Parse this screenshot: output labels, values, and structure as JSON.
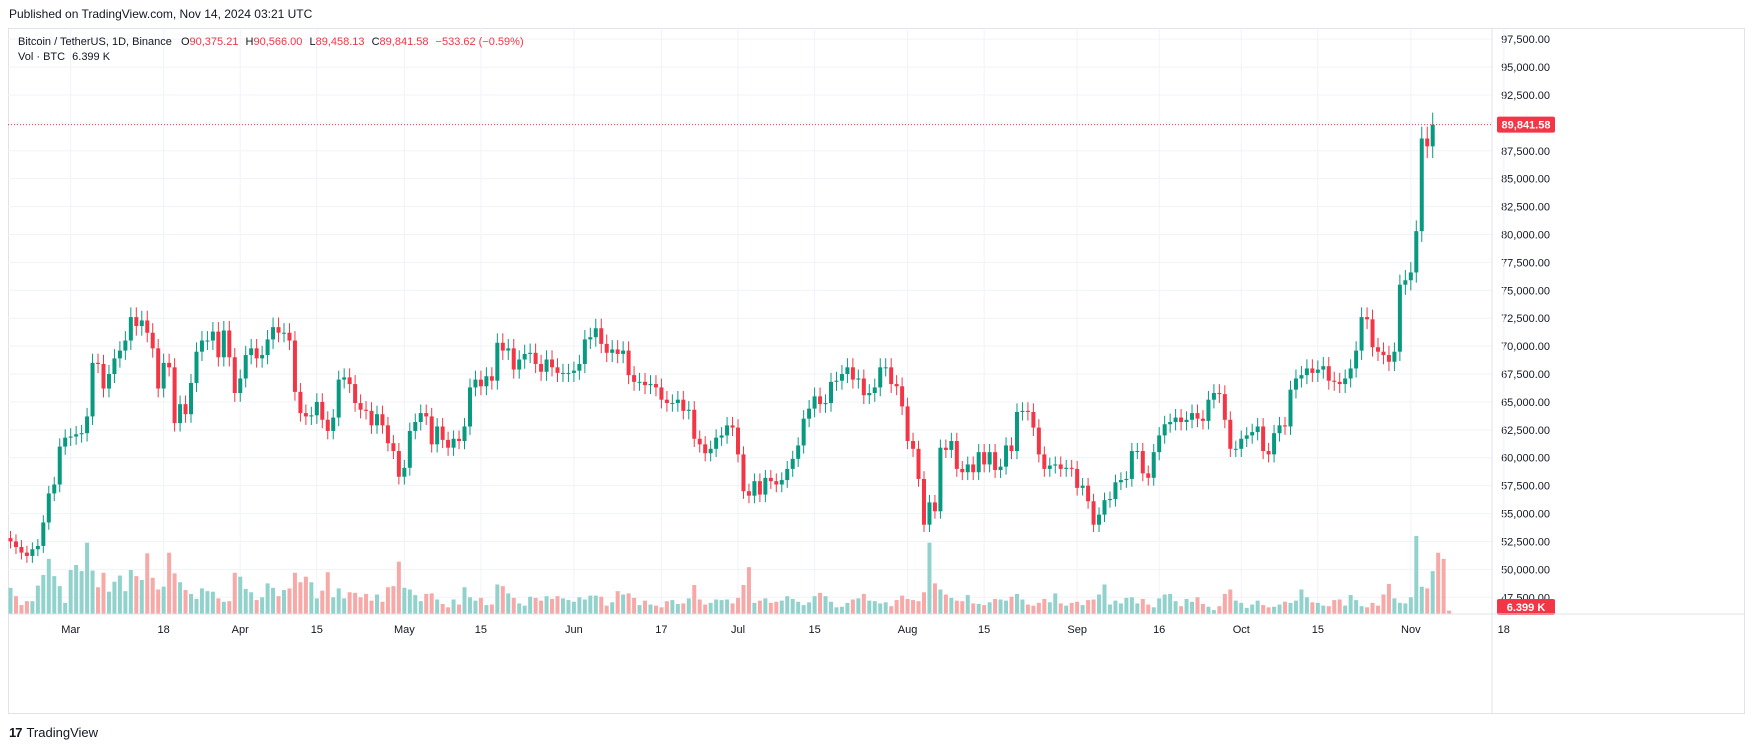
{
  "published": "Published on TradingView.com, Nov 14, 2024 03:21 UTC",
  "legend": {
    "symbol": "Bitcoin / TetherUS, 1D, Binance",
    "o_label": "O",
    "o_value": "90,375.21",
    "h_label": "H",
    "h_value": "90,566.00",
    "l_label": "L",
    "l_value": "89,458.13",
    "c_label": "C",
    "c_value": "89,841.58",
    "change": "−533.62 (−0.59%)",
    "vol_label": "Vol · BTC",
    "vol_value": "6.399 K"
  },
  "price_badge": "89,841.58",
  "vol_badge": "6.399 K",
  "footer": {
    "logo_glyph": "17",
    "brand": "TradingView"
  },
  "colors": {
    "up": "#089981",
    "down": "#f23645",
    "up_vol": "#92d2cc",
    "down_vol": "#f7a9a7",
    "grid": "#f0f3fa",
    "axis_text": "#131722"
  },
  "chart_data": {
    "type": "candlestick",
    "title": "Bitcoin / TetherUS, 1D, Binance",
    "ylim": [
      46000,
      98500
    ],
    "y_ticks": [
      "97,500.00",
      "95,000.00",
      "92,500.00",
      "90,000.00",
      "87,500.00",
      "85,000.00",
      "82,500.00",
      "80,000.00",
      "77,500.00",
      "75,000.00",
      "72,500.00",
      "70,000.00",
      "67,500.00",
      "65,000.00",
      "62,500.00",
      "60,000.00",
      "57,500.00",
      "55,000.00",
      "52,500.00",
      "50,000.00",
      "47,500.00"
    ],
    "y_tick_values": [
      97500,
      95000,
      92500,
      90000,
      87500,
      85000,
      82500,
      80000,
      77500,
      75000,
      72500,
      70000,
      67500,
      65000,
      62500,
      60000,
      57500,
      55000,
      52500,
      50000,
      47500
    ],
    "x_ticks": [
      {
        "label": "Mar",
        "day": 11
      },
      {
        "label": "18",
        "day": 28
      },
      {
        "label": "Apr",
        "day": 42
      },
      {
        "label": "15",
        "day": 56
      },
      {
        "label": "May",
        "day": 72
      },
      {
        "label": "15",
        "day": 86
      },
      {
        "label": "Jun",
        "day": 103
      },
      {
        "label": "17",
        "day": 119
      },
      {
        "label": "Jul",
        "day": 133
      },
      {
        "label": "15",
        "day": 147
      },
      {
        "label": "Aug",
        "day": 164
      },
      {
        "label": "15",
        "day": 178
      },
      {
        "label": "Sep",
        "day": 195
      },
      {
        "label": "16",
        "day": 210
      },
      {
        "label": "Oct",
        "day": 225
      },
      {
        "label": "15",
        "day": 239
      },
      {
        "label": "Nov",
        "day": 256
      },
      {
        "label": "18",
        "day": 273
      }
    ],
    "last_price": 89841.58,
    "closes": [
      52500,
      52000,
      51500,
      51200,
      51800,
      52100,
      54200,
      56800,
      57600,
      61000,
      61800,
      61900,
      62100,
      62200,
      63700,
      68500,
      68400,
      66200,
      67500,
      68900,
      69600,
      70500,
      72600,
      71800,
      72300,
      71200,
      69800,
      66200,
      68500,
      68100,
      63100,
      64800,
      63900,
      66700,
      69500,
      70500,
      70500,
      71300,
      69000,
      71400,
      69000,
      65800,
      67100,
      69200,
      69800,
      68900,
      69200,
      70600,
      71700,
      71200,
      71200,
      70500,
      65900,
      64000,
      63700,
      63800,
      65000,
      63400,
      62400,
      63600,
      67000,
      67200,
      66600,
      64900,
      64300,
      64200,
      62900,
      63900,
      62900,
      61300,
      60600,
      58300,
      59100,
      62400,
      63200,
      64000,
      63700,
      61200,
      62800,
      61600,
      60900,
      61700,
      61500,
      62800,
      66300,
      67000,
      66400,
      67300,
      66900,
      70300,
      69600,
      69800,
      67900,
      68800,
      69300,
      69400,
      68400,
      67700,
      68800,
      68100,
      67600,
      67600,
      67600,
      67800,
      68400,
      70600,
      70800,
      71600,
      70200,
      69400,
      69700,
      69300,
      69600,
      67400,
      66800,
      66800,
      66500,
      66600,
      66300,
      65200,
      64900,
      64900,
      65200,
      64200,
      64300,
      61700,
      61200,
      60400,
      60800,
      61800,
      62000,
      62900,
      62700,
      60300,
      57000,
      56600,
      57900,
      56700,
      58200,
      57900,
      57600,
      58000,
      59000,
      59900,
      61100,
      63500,
      64400,
      65500,
      64800,
      64900,
      66800,
      66900,
      67500,
      68100,
      67000,
      67100,
      65600,
      65800,
      66300,
      68100,
      68100,
      66600,
      66400,
      64600,
      61500,
      60800,
      58100,
      54000,
      56000,
      55200,
      60900,
      60700,
      61500,
      59000,
      58700,
      59400,
      58700,
      60500,
      59400,
      60500,
      58900,
      59200,
      61100,
      60600,
      64100,
      64200,
      64100,
      62700,
      60300,
      59000,
      59300,
      59400,
      59000,
      59100,
      59000,
      57300,
      57500,
      56100,
      54000,
      54900,
      56200,
      56300,
      57800,
      58000,
      58100,
      60600,
      60600,
      58600,
      58200,
      60500,
      62000,
      63000,
      63200,
      63600,
      63200,
      63400,
      64000,
      63500,
      63300,
      65200,
      65800,
      65700,
      63400,
      60800,
      60800,
      61700,
      62000,
      62300,
      62800,
      60600,
      60300,
      62200,
      62900,
      62800,
      66100,
      67100,
      67400,
      68000,
      67600,
      67900,
      68200,
      66900,
      66800,
      66600,
      67100,
      68000,
      69600,
      72600,
      72400,
      69900,
      69500,
      69200,
      68600,
      69500,
      75500,
      75900,
      76600,
      80300,
      88600,
      87900,
      89841.58
    ],
    "volumes": [
      4.7,
      3.2,
      1.6,
      2.3,
      2.3,
      5.1,
      7.0,
      9.9,
      6.8,
      5.0,
      2.0,
      7.9,
      8.8,
      7.7,
      12.8,
      7.8,
      4.8,
      7.4,
      4.0,
      5.8,
      6.9,
      4.1,
      7.9,
      6.8,
      6.1,
      10.9,
      6.5,
      4.4,
      4.9,
      11.0,
      7.3,
      5.7,
      4.3,
      3.6,
      2.7,
      4.6,
      4.1,
      4.0,
      2.8,
      2.2,
      2.3,
      7.4,
      6.7,
      4.5,
      3.9,
      2.5,
      3.0,
      5.5,
      4.7,
      3.2,
      4.3,
      4.6,
      7.4,
      5.7,
      6.7,
      5.7,
      2.8,
      4.2,
      7.5,
      3.0,
      4.6,
      2.8,
      3.9,
      3.8,
      3.0,
      3.6,
      2.4,
      3.5,
      2.2,
      4.8,
      5.0,
      9.4,
      4.7,
      4.4,
      3.4,
      2.3,
      3.6,
      3.7,
      2.6,
      1.8,
      1.2,
      2.6,
      1.7,
      4.8,
      3.0,
      2.4,
      2.9,
      1.6,
      1.7,
      5.3,
      5.0,
      3.7,
      2.9,
      1.9,
      1.5,
      3.1,
      2.9,
      2.4,
      3.2,
      2.7,
      3.2,
      2.8,
      2.5,
      2.2,
      3.0,
      2.6,
      3.3,
      3.3,
      3.1,
      1.5,
      2.1,
      4.1,
      3.5,
      3.7,
      2.9,
      1.6,
      2.4,
      1.7,
      1.5,
      1.2,
      2.3,
      2.5,
      1.8,
      1.9,
      2.8,
      5.2,
      2.6,
      1.7,
      2.0,
      2.6,
      2.5,
      2.6,
      1.9,
      2.9,
      5.2,
      8.4,
      2.0,
      2.4,
      2.8,
      2.0,
      2.2,
      2.4,
      3.2,
      2.7,
      2.2,
      1.6,
      2.1,
      3.2,
      3.8,
      3.2,
      2.2,
      1.2,
      1.3,
      2.0,
      2.6,
      2.8,
      3.6,
      2.4,
      2.3,
      1.9,
      2.1,
      1.4,
      2.5,
      3.3,
      2.7,
      2.5,
      2.3,
      3.9,
      12.8,
      5.5,
      4.4,
      3.5,
      2.9,
      2.4,
      2.3,
      3.4,
      1.9,
      1.8,
      1.6,
      2.1,
      2.7,
      2.6,
      2.4,
      3.1,
      3.6,
      2.6,
      1.7,
      1.5,
      2.0,
      2.7,
      2.1,
      3.7,
      1.9,
      1.5,
      2.0,
      2.2,
      1.6,
      2.5,
      2.6,
      3.5,
      5.3,
      1.7,
      2.4,
      1.9,
      2.9,
      3.0,
      1.9,
      2.7,
      1.7,
      1.2,
      2.8,
      3.5,
      3.6,
      2.3,
      1.4,
      2.7,
      2.2,
      3.0,
      1.8,
      1.3,
      0.7,
      1.4,
      3.6,
      4.4,
      2.4,
      2.0,
      1.1,
      1.7,
      2.4,
      1.6,
      1.2,
      1.3,
      1.7,
      2.2,
      2.0,
      2.4,
      4.4,
      3.0,
      2.1,
      2.0,
      1.5,
      1.4,
      2.5,
      2.6,
      1.5,
      3.4,
      2.5,
      1.4,
      1.2,
      2.0,
      1.5,
      3.5,
      5.4,
      2.8,
      2.0,
      1.9,
      3.0,
      14.1,
      4.9,
      4.6,
      7.7,
      11.0,
      9.9,
      0.6
    ],
    "vol_max": 14
  }
}
